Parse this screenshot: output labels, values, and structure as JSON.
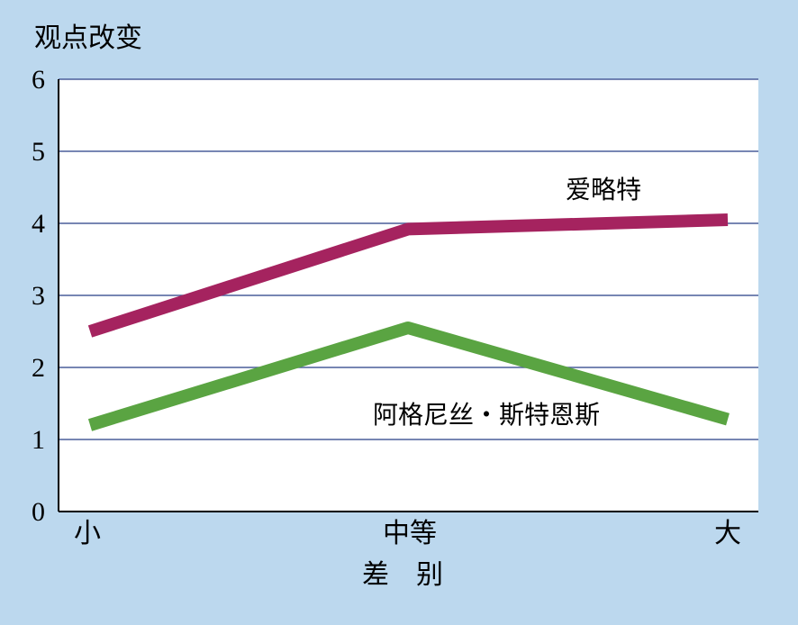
{
  "chart_data": {
    "type": "line",
    "title": "",
    "ylabel": "观点改变",
    "xlabel": "差　别",
    "categories": [
      "小",
      "中等",
      "大"
    ],
    "yticks": [
      "0",
      "1",
      "2",
      "3",
      "4",
      "5",
      "6"
    ],
    "ylim": [
      0,
      6
    ],
    "grid": true,
    "series": [
      {
        "name": "爱略特",
        "values": [
          2.5,
          3.92,
          4.05
        ],
        "color": "#a5235f"
      },
      {
        "name": "阿格尼丝・斯特恩斯",
        "values": [
          1.2,
          2.55,
          1.28
        ],
        "color": "#5aa442"
      }
    ]
  },
  "colors": {
    "background": "#bcd8ee",
    "plot_background": "#ffffff",
    "grid": "#4a5e9a",
    "axis": "#000000"
  }
}
